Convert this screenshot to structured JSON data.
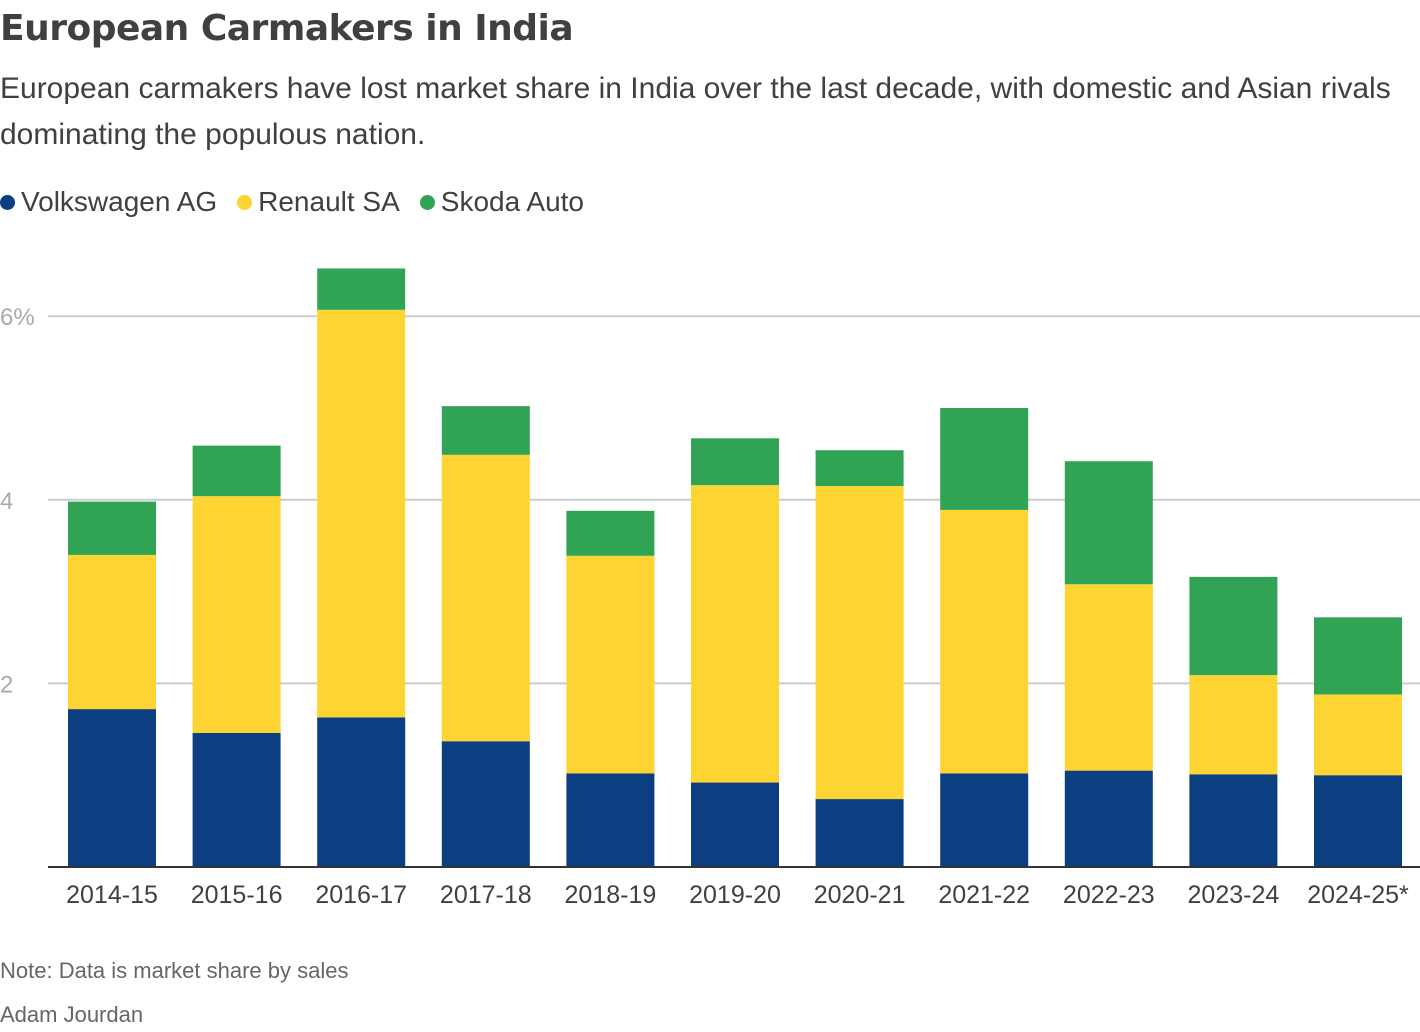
{
  "title": "European Carmakers in India",
  "subtitle": "European carmakers have lost market share in India over the last decade, with domestic and Asian rivals dominating the populous nation.",
  "note": "Note: Data is market share by sales",
  "source": "Adam Jourdan",
  "chart_data": {
    "type": "bar",
    "stacked": true,
    "categories": [
      "2014-15",
      "2015-16",
      "2016-17",
      "2017-18",
      "2018-19",
      "2019-20",
      "2020-21",
      "2021-22",
      "2022-23",
      "2023-24",
      "2024-25*"
    ],
    "series": [
      {
        "name": "Volkswagen AG",
        "color": "#0b3f82",
        "values": [
          1.72,
          1.46,
          1.63,
          1.37,
          1.02,
          0.92,
          0.74,
          1.02,
          1.05,
          1.01,
          1.0
        ]
      },
      {
        "name": "Renault SA",
        "color": "#fdd432",
        "values": [
          1.68,
          2.58,
          4.44,
          3.12,
          2.37,
          3.24,
          3.41,
          2.87,
          2.03,
          1.08,
          0.88
        ]
      },
      {
        "name": "Skoda Auto",
        "color": "#31a354",
        "values": [
          0.58,
          0.55,
          0.45,
          0.53,
          0.49,
          0.51,
          0.39,
          1.11,
          1.34,
          1.07,
          0.84
        ]
      }
    ],
    "yticks": [
      {
        "value": 2,
        "label": "2"
      },
      {
        "value": 4,
        "label": "4"
      },
      {
        "value": 6,
        "label": "6%"
      }
    ],
    "ylim": [
      0,
      6.6
    ],
    "grid": true,
    "legend": "top-left",
    "xlabel": "",
    "ylabel": ""
  }
}
